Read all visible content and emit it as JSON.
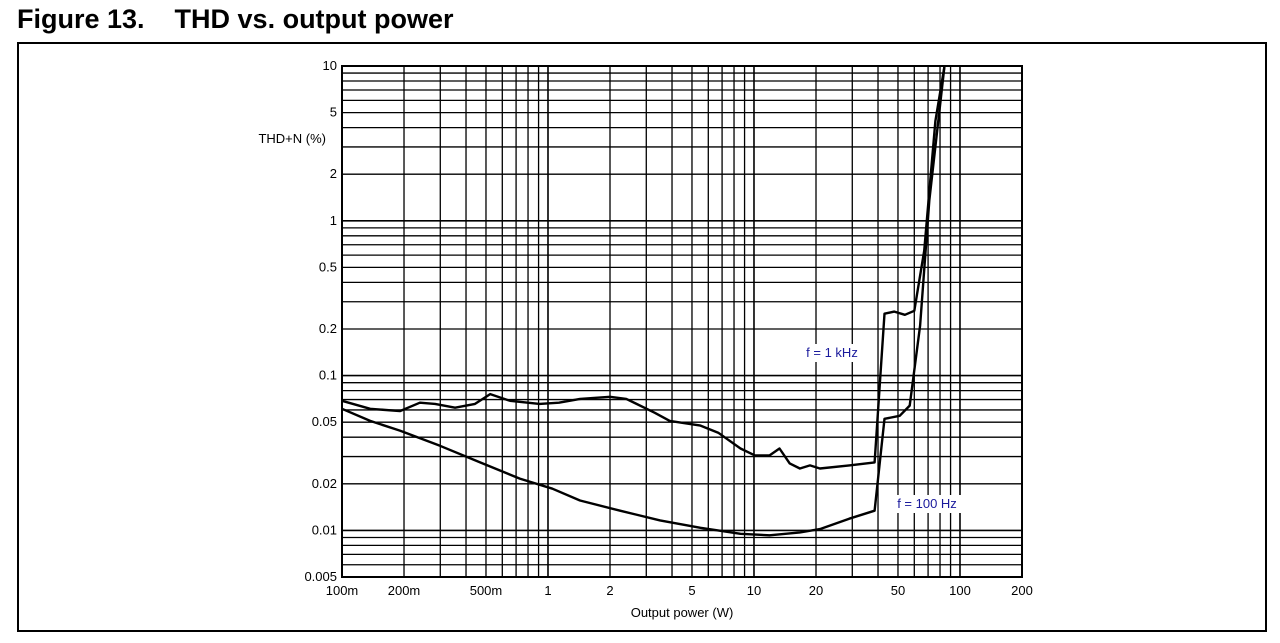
{
  "figure": {
    "title": "Figure 13.    THD vs. output power"
  },
  "chart_data": {
    "type": "line",
    "title": "",
    "xlabel": "Output power (W)",
    "ylabel": "THD+N (%)",
    "xscale": "log",
    "yscale": "log",
    "xlim": [
      0.1,
      200
    ],
    "ylim": [
      0.005,
      10
    ],
    "grid": true,
    "xticks": [
      {
        "v": 0.1,
        "label": "100m"
      },
      {
        "v": 0.2,
        "label": "200m"
      },
      {
        "v": 0.5,
        "label": "500m"
      },
      {
        "v": 1,
        "label": "1"
      },
      {
        "v": 2,
        "label": "2"
      },
      {
        "v": 5,
        "label": "5"
      },
      {
        "v": 10,
        "label": "10"
      },
      {
        "v": 20,
        "label": "20"
      },
      {
        "v": 50,
        "label": "50"
      },
      {
        "v": 100,
        "label": "100"
      },
      {
        "v": 200,
        "label": "200"
      }
    ],
    "yticks": [
      {
        "v": 0.005,
        "label": "0.005"
      },
      {
        "v": 0.01,
        "label": "0.01"
      },
      {
        "v": 0.02,
        "label": "0.02"
      },
      {
        "v": 0.05,
        "label": "0.05"
      },
      {
        "v": 0.1,
        "label": "0.1"
      },
      {
        "v": 0.2,
        "label": "0.2"
      },
      {
        "v": 0.5,
        "label": "0.5"
      },
      {
        "v": 1,
        "label": "1"
      },
      {
        "v": 2,
        "label": "2"
      },
      {
        "v": 5,
        "label": "5"
      },
      {
        "v": 10,
        "label": "10"
      }
    ],
    "series": [
      {
        "name": "f = 1 kHz",
        "label_color": "#1a1a9c",
        "x": [
          0.1,
          0.137,
          0.191,
          0.239,
          0.283,
          0.354,
          0.442,
          0.524,
          0.654,
          0.91,
          1.13,
          1.43,
          2.0,
          2.4,
          3.3,
          3.9,
          5.5,
          6.7,
          8.6,
          10.1,
          11.9,
          13.3,
          14.9,
          16.7,
          18.7,
          20.9,
          29,
          38.5,
          43,
          48,
          54,
          60,
          67,
          76,
          84
        ],
        "y": [
          0.0687,
          0.061,
          0.059,
          0.0668,
          0.0656,
          0.062,
          0.0656,
          0.076,
          0.0687,
          0.0656,
          0.0668,
          0.0707,
          0.073,
          0.0707,
          0.0575,
          0.051,
          0.0475,
          0.0428,
          0.0338,
          0.0305,
          0.0305,
          0.0338,
          0.0271,
          0.0251,
          0.0263,
          0.0251,
          0.0263,
          0.0275,
          0.251,
          0.259,
          0.247,
          0.262,
          0.64,
          4.42,
          9.9
        ]
      },
      {
        "name": "f = 100 Hz",
        "label_color": "#1a1a9c",
        "x": [
          0.1,
          0.137,
          0.191,
          0.299,
          0.468,
          0.73,
          1.05,
          1.43,
          2.24,
          3.5,
          5.5,
          8.6,
          11.9,
          16.7,
          20.9,
          29,
          38.5,
          43,
          51,
          57,
          64,
          71,
          84
        ],
        "y": [
          0.061,
          0.051,
          0.0441,
          0.0352,
          0.0275,
          0.0216,
          0.0186,
          0.0156,
          0.0134,
          0.0116,
          0.0104,
          0.0095,
          0.0093,
          0.0097,
          0.0102,
          0.0119,
          0.0134,
          0.0526,
          0.055,
          0.064,
          0.21,
          1.35,
          9.9
        ]
      }
    ]
  }
}
